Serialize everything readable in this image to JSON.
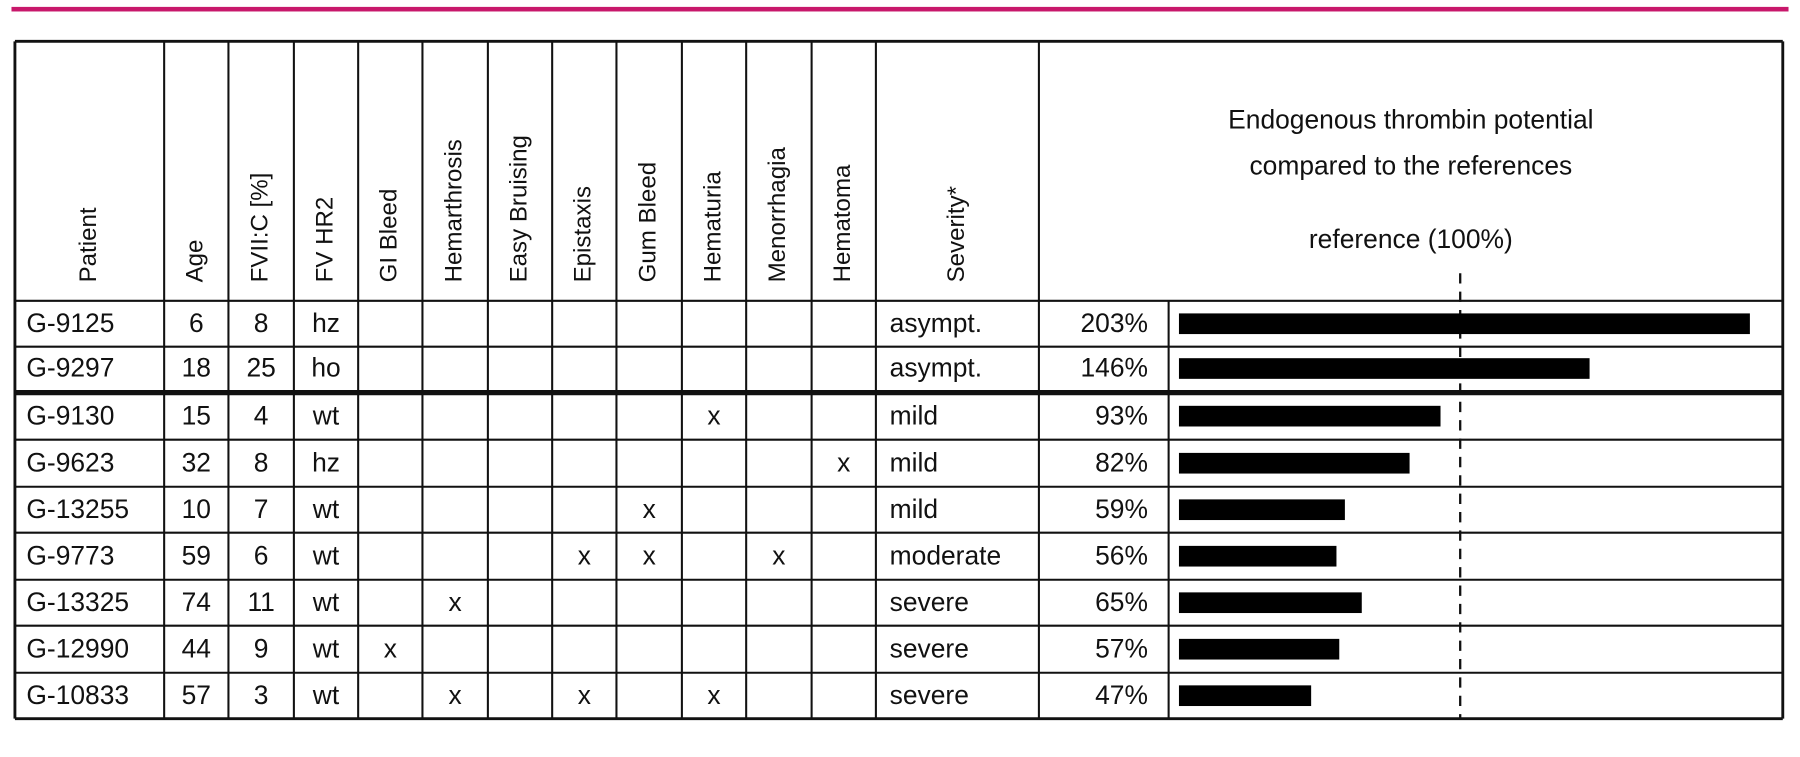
{
  "table": {
    "headers": [
      "Patient",
      "Age",
      "FVII:C [%]",
      "FV HR2",
      "GI Bleed",
      "Hemarthrosis",
      "Easy Bruising",
      "Epistaxis",
      "Gum Bleed",
      "Hematuria",
      "Menorrhagia",
      "Hematoma",
      "Severity*"
    ],
    "etp_title": [
      "Endogenous thrombin potential",
      "compared to the references"
    ],
    "reference": {
      "value": 100,
      "label": "reference (100%)"
    },
    "rows": [
      {
        "cells": [
          "G-9125",
          6,
          8,
          "hz",
          null,
          null,
          null,
          null,
          null,
          null,
          null,
          null,
          "asympt."
        ],
        "etp": 203,
        "etp_label": "203%"
      },
      {
        "cells": [
          "G-9297",
          18,
          25,
          "ho",
          null,
          null,
          null,
          null,
          null,
          null,
          null,
          null,
          "asympt."
        ],
        "etp": 146,
        "etp_label": "146%"
      },
      {
        "cells": [
          "G-9130",
          15,
          4,
          "wt",
          null,
          null,
          null,
          null,
          null,
          "x",
          null,
          null,
          "mild"
        ],
        "etp": 93,
        "etp_label": "93%"
      },
      {
        "cells": [
          "G-9623",
          32,
          8,
          "hz",
          null,
          null,
          null,
          null,
          null,
          null,
          null,
          "x",
          "mild"
        ],
        "etp": 82,
        "etp_label": "82%"
      },
      {
        "cells": [
          "G-13255",
          10,
          7,
          "wt",
          null,
          null,
          null,
          null,
          "x",
          null,
          null,
          null,
          "mild"
        ],
        "etp": 59,
        "etp_label": "59%"
      },
      {
        "cells": [
          "G-9773",
          59,
          6,
          "wt",
          null,
          null,
          null,
          "x",
          "x",
          null,
          "x",
          null,
          "moderate"
        ],
        "etp": 56,
        "etp_label": "56%"
      },
      {
        "cells": [
          "G-13325",
          74,
          11,
          "wt",
          null,
          "x",
          null,
          null,
          null,
          null,
          null,
          null,
          "severe"
        ],
        "etp": 65,
        "etp_label": "65%"
      },
      {
        "cells": [
          "G-12990",
          44,
          9,
          "wt",
          "x",
          null,
          null,
          null,
          null,
          null,
          null,
          null,
          "severe"
        ],
        "etp": 57,
        "etp_label": "57%"
      },
      {
        "cells": [
          "G-10833",
          57,
          3,
          "wt",
          null,
          "x",
          null,
          "x",
          null,
          "x",
          null,
          null,
          "severe"
        ],
        "etp": 47,
        "etp_label": "47%"
      }
    ]
  }
}
